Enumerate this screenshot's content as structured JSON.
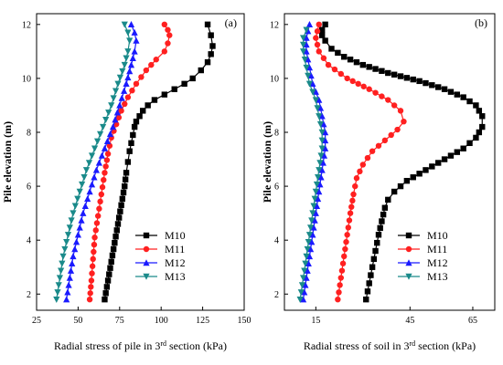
{
  "chart_data": [
    {
      "type": "line",
      "panel_label": "(a)",
      "xlabel": "Radial stress of pile in 3",
      "xlabel_sup": "rd",
      "xlabel_tail": " section (kPa)",
      "ylabel": "Pile elevation (m)",
      "xlim": [
        25,
        150
      ],
      "ylim": [
        1.4,
        12.4
      ],
      "xticks": [
        25,
        50,
        75,
        100,
        125,
        150
      ],
      "yticks": [
        2,
        4,
        6,
        8,
        10,
        12
      ],
      "legend_position": "lower-right",
      "series": [
        {
          "name": "M10",
          "color": "#000000",
          "marker": "square",
          "x": [
            66,
            68,
            70,
            72,
            74,
            76,
            78,
            79,
            80,
            81,
            82,
            83,
            84,
            85,
            87,
            89,
            92,
            96,
            102,
            108,
            114,
            119,
            124,
            128,
            130,
            131,
            130,
            128
          ],
          "y": [
            1.8,
            2.5,
            3.2,
            3.9,
            4.6,
            5.3,
            6.0,
            6.5,
            6.9,
            7.3,
            7.6,
            7.9,
            8.2,
            8.4,
            8.6,
            8.8,
            9.0,
            9.2,
            9.4,
            9.6,
            9.8,
            10.0,
            10.3,
            10.6,
            10.9,
            11.2,
            11.6,
            12.0
          ]
        },
        {
          "name": "M11",
          "color": "#ff2020",
          "marker": "circle",
          "x": [
            57,
            58,
            59,
            60,
            62,
            64,
            66,
            68,
            70,
            73,
            76,
            80,
            85,
            91,
            97,
            102,
            104,
            105,
            104,
            102
          ],
          "y": [
            1.8,
            2.5,
            3.3,
            4.1,
            4.9,
            5.7,
            6.5,
            7.2,
            7.8,
            8.3,
            8.8,
            9.3,
            9.8,
            10.3,
            10.7,
            11.0,
            11.3,
            11.6,
            11.8,
            12.0
          ]
        },
        {
          "name": "M12",
          "color": "#1a1aff",
          "marker": "triangle-up",
          "x": [
            43,
            45,
            47,
            50,
            53,
            57,
            61,
            66,
            71,
            75,
            79,
            82,
            84,
            85,
            84,
            82
          ],
          "y": [
            1.8,
            2.6,
            3.4,
            4.2,
            5.0,
            5.8,
            6.6,
            7.4,
            8.2,
            9.0,
            9.8,
            10.5,
            11.0,
            11.4,
            11.7,
            12.0
          ]
        },
        {
          "name": "M13",
          "color": "#1a8a8a",
          "marker": "triangle-down",
          "x": [
            37,
            39,
            41,
            44,
            47,
            51,
            55,
            60,
            65,
            70,
            74,
            78,
            80,
            81,
            80,
            78
          ],
          "y": [
            1.8,
            2.6,
            3.4,
            4.2,
            5.0,
            5.8,
            6.6,
            7.4,
            8.2,
            9.0,
            9.8,
            10.5,
            11.0,
            11.4,
            11.7,
            12.0
          ]
        }
      ]
    },
    {
      "type": "line",
      "panel_label": "(b)",
      "xlabel": "Radial stress of soil in 3",
      "xlabel_sup": "rd",
      "xlabel_tail": " section (kPa)",
      "ylabel": "Pile elevation (m)",
      "xlim": [
        5,
        72
      ],
      "ylim": [
        1.4,
        12.4
      ],
      "xticks": [
        15,
        45,
        65
      ],
      "yticks": [
        2,
        4,
        6,
        8,
        10,
        12
      ],
      "legend_position": "lower-right",
      "series": [
        {
          "name": "M10",
          "color": "#000000",
          "marker": "square",
          "x": [
            31,
            32,
            33,
            34,
            35,
            36,
            37,
            38,
            40,
            44,
            50,
            56,
            62,
            66,
            68,
            68,
            66,
            62,
            56,
            48,
            38,
            30,
            24,
            20,
            18,
            17,
            17,
            18
          ],
          "y": [
            1.8,
            2.4,
            3.0,
            3.6,
            4.2,
            4.7,
            5.2,
            5.5,
            5.8,
            6.2,
            6.6,
            7.0,
            7.4,
            7.8,
            8.2,
            8.6,
            9.0,
            9.3,
            9.6,
            9.9,
            10.2,
            10.5,
            10.8,
            11.1,
            11.4,
            11.6,
            11.8,
            12.0
          ]
        },
        {
          "name": "M11",
          "color": "#ff2020",
          "marker": "circle",
          "x": [
            22,
            23,
            24,
            25,
            26,
            27,
            28,
            30,
            33,
            37,
            41,
            43,
            42,
            38,
            32,
            25,
            19,
            16,
            15,
            16
          ],
          "y": [
            1.8,
            2.6,
            3.4,
            4.2,
            5.0,
            5.7,
            6.3,
            6.8,
            7.3,
            7.7,
            8.1,
            8.4,
            8.8,
            9.2,
            9.6,
            10.0,
            10.5,
            11.0,
            11.5,
            12.0
          ]
        },
        {
          "name": "M12",
          "color": "#1a1aff",
          "marker": "triangle-up",
          "x": [
            11,
            12,
            13,
            14,
            15,
            16,
            17,
            18,
            18,
            17,
            16,
            14,
            13,
            12,
            12,
            13
          ],
          "y": [
            1.8,
            2.6,
            3.4,
            4.2,
            5.0,
            5.8,
            6.6,
            7.4,
            8.0,
            8.6,
            9.2,
            9.8,
            10.4,
            11.0,
            11.5,
            12.0
          ]
        },
        {
          "name": "M13",
          "color": "#1a8a8a",
          "marker": "triangle-down",
          "x": [
            10,
            11,
            12,
            13,
            14,
            15,
            16,
            17,
            17,
            16,
            15,
            13,
            12,
            11,
            11,
            12
          ],
          "y": [
            1.8,
            2.6,
            3.4,
            4.2,
            5.0,
            5.8,
            6.6,
            7.4,
            8.0,
            8.6,
            9.2,
            9.8,
            10.4,
            11.0,
            11.5,
            11.8
          ]
        }
      ]
    }
  ]
}
